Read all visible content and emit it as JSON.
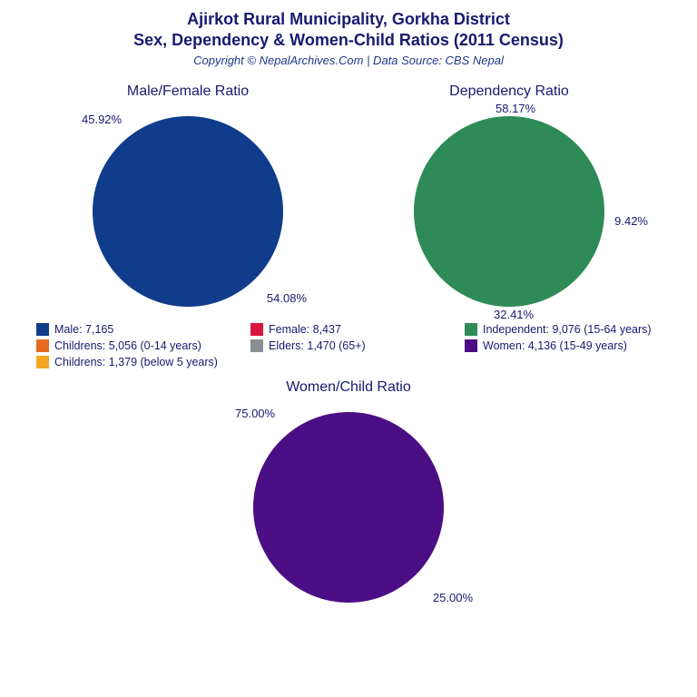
{
  "header": {
    "title_line1": "Ajirkot Rural Municipality, Gorkha District",
    "title_line2": "Sex, Dependency & Women-Child Ratios (2011 Census)",
    "copyright": "Copyright © NepalArchives.Com | Data Source: CBS Nepal"
  },
  "colors": {
    "title": "#191970",
    "label": "#191970",
    "male": "#103c8c",
    "female": "#d9153f",
    "independent": "#2e8b57",
    "children": "#e66b1f",
    "elders": "#8a8f94",
    "women": "#4b0e85",
    "children_below5": "#f5a623",
    "background": "#ffffff"
  },
  "chart1": {
    "title": "Male/Female Ratio",
    "type": "pie",
    "slices": [
      {
        "label": "Male",
        "pct": 45.92,
        "pct_text": "45.92%",
        "color": "#103c8c"
      },
      {
        "label": "Female",
        "pct": 54.08,
        "pct_text": "54.08%",
        "color": "#d9153f"
      }
    ],
    "start_angle_deg": 200
  },
  "chart2": {
    "title": "Dependency Ratio",
    "type": "pie",
    "slices": [
      {
        "label": "Independent",
        "pct": 58.17,
        "pct_text": "58.17%",
        "color": "#2e8b57"
      },
      {
        "label": "Elders",
        "pct": 9.42,
        "pct_text": "9.42%",
        "color": "#8a8f94"
      },
      {
        "label": "Childrens",
        "pct": 32.41,
        "pct_text": "32.41%",
        "color": "#e66b1f"
      }
    ],
    "start_angle_deg": 195
  },
  "chart3": {
    "title": "Women/Child Ratio",
    "type": "pie",
    "slices": [
      {
        "label": "Women",
        "pct": 75.0,
        "pct_text": "75.00%",
        "color": "#4b0e85"
      },
      {
        "label": "Childrens",
        "pct": 25.0,
        "pct_text": "25.00%",
        "color": "#f5a623"
      }
    ],
    "start_angle_deg": 180
  },
  "legend": [
    {
      "swatch": "#103c8c",
      "text": "Male: 7,165"
    },
    {
      "swatch": "#d9153f",
      "text": "Female: 8,437"
    },
    {
      "swatch": "#2e8b57",
      "text": "Independent: 9,076 (15-64 years)"
    },
    {
      "swatch": "#e66b1f",
      "text": "Childrens: 5,056 (0-14 years)"
    },
    {
      "swatch": "#8a8f94",
      "text": "Elders: 1,470 (65+)"
    },
    {
      "swatch": "#4b0e85",
      "text": "Women: 4,136 (15-49 years)"
    },
    {
      "swatch": "#f5a623",
      "text": "Childrens: 1,379 (below 5 years)"
    }
  ]
}
